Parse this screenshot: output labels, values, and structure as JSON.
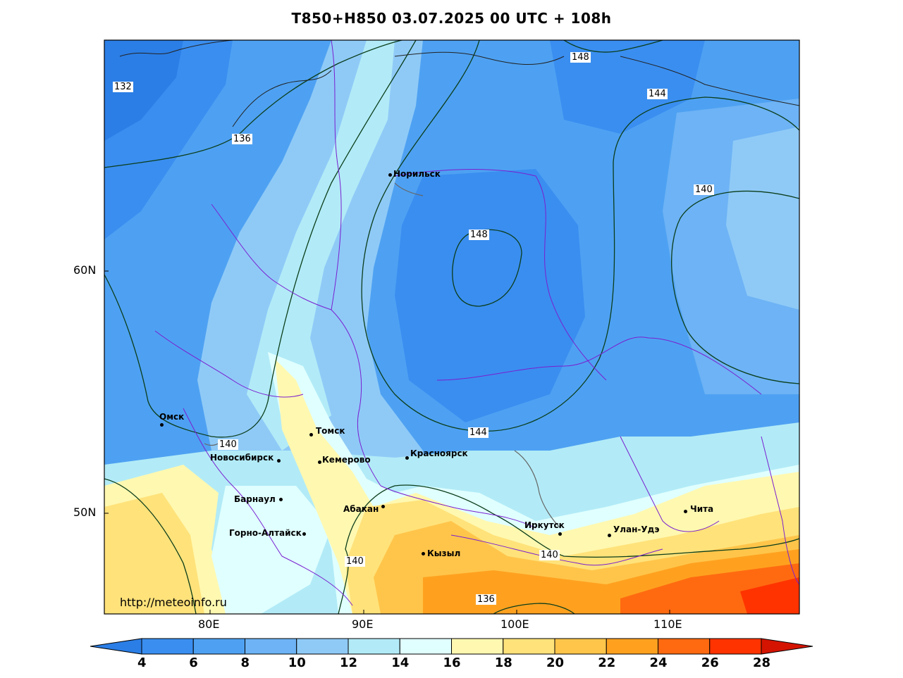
{
  "title": "T850+H850 03.07.2025 00 UTC + 108h",
  "watermark": "http://meteoinfo.ru",
  "lat_labels": [
    "60N",
    "50N"
  ],
  "lon_labels": [
    "80E",
    "90E",
    "100E",
    "110E"
  ],
  "colorbar": {
    "ticks": [
      "4",
      "6",
      "8",
      "10",
      "12",
      "14",
      "16",
      "18",
      "20",
      "22",
      "24",
      "26",
      "28"
    ],
    "colors": [
      "#2b7ee6",
      "#3a8ef0",
      "#4ea1f2",
      "#6db3f5",
      "#8fcaf7",
      "#b2ebf7",
      "#e0ffff",
      "#fff8b0",
      "#ffe27a",
      "#ffc54a",
      "#ffa11f",
      "#ff6a10",
      "#ff3300",
      "#d41400"
    ],
    "low_arrow_color": "#2b7ee6",
    "high_arrow_color": "#d41400"
  },
  "cities": [
    {
      "name": "Норильск"
    },
    {
      "name": "Омск"
    },
    {
      "name": "Томск"
    },
    {
      "name": "Новосибирск"
    },
    {
      "name": "Кемерово"
    },
    {
      "name": "Красноярск"
    },
    {
      "name": "Барнаул"
    },
    {
      "name": "Абакан"
    },
    {
      "name": "Горно-Алтайск"
    },
    {
      "name": "Кызыл"
    },
    {
      "name": "Иркутск"
    },
    {
      "name": "Улан-Удэ"
    },
    {
      "name": "Чита"
    }
  ],
  "contour_labels": [
    "132",
    "136",
    "148",
    "144",
    "140",
    "148",
    "144",
    "140",
    "140",
    "140",
    "136"
  ]
}
